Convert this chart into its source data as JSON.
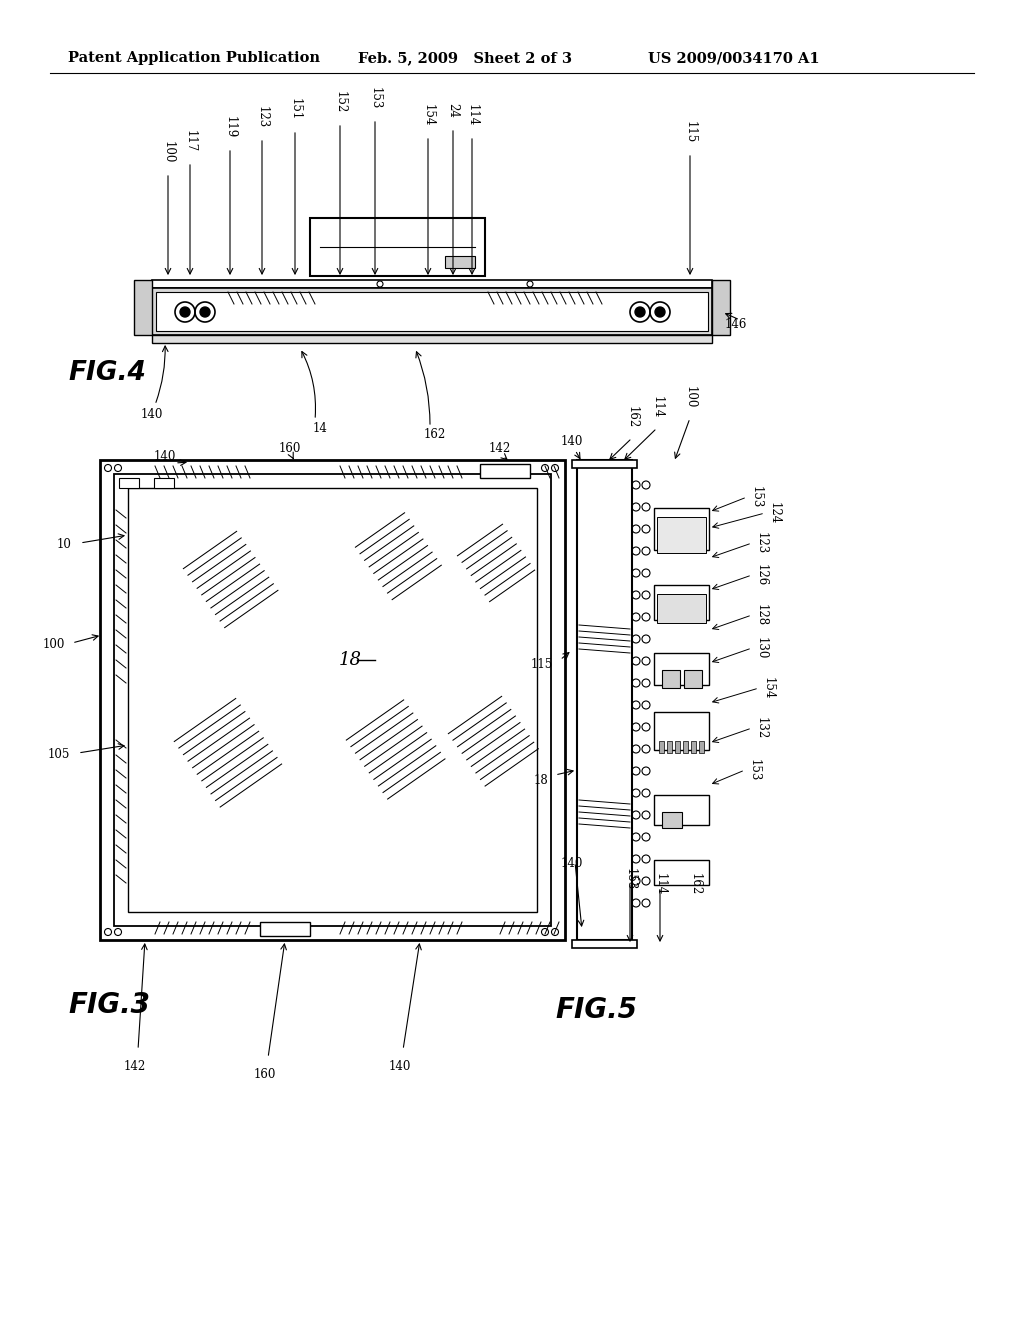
{
  "bg_color": "#ffffff",
  "header_text": "Patent Application Publication",
  "header_date": "Feb. 5, 2009   Sheet 2 of 3",
  "header_patent": "US 2009/0034170 A1"
}
